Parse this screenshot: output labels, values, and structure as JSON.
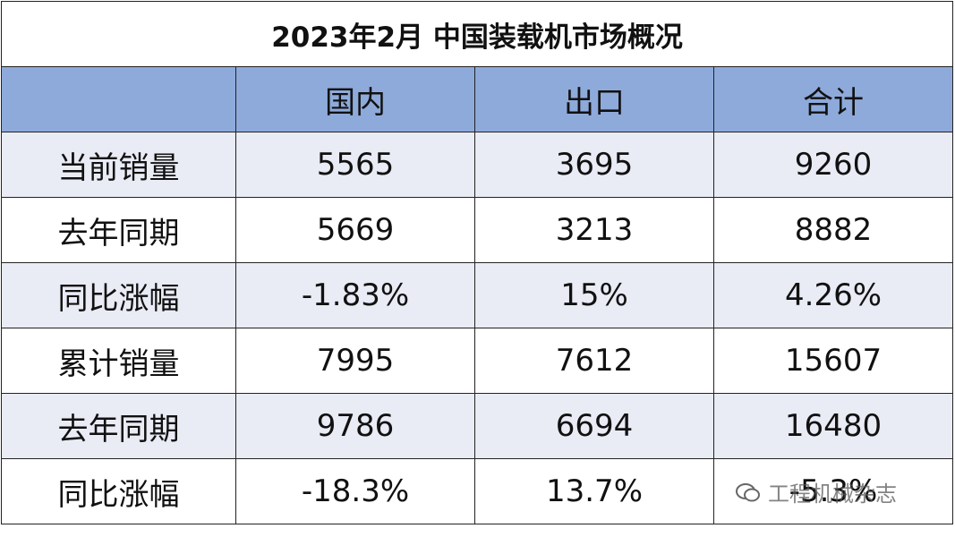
{
  "title": "2023年2月 中国装载机市场概况",
  "table": {
    "columns": [
      "国内",
      "出口",
      "合计"
    ],
    "rows": [
      {
        "label": "当前销量",
        "cells": [
          "5565",
          "3695",
          "9260"
        ]
      },
      {
        "label": "去年同期",
        "cells": [
          "5669",
          "3213",
          "8882"
        ]
      },
      {
        "label": "同比涨幅",
        "cells": [
          "-1.83%",
          "15%",
          "4.26%"
        ]
      },
      {
        "label": "累计销量",
        "cells": [
          "7995",
          "7612",
          "15607"
        ]
      },
      {
        "label": "去年同期",
        "cells": [
          "9786",
          "6694",
          "16480"
        ]
      },
      {
        "label": "同比涨幅",
        "cells": [
          "-18.3%",
          "13.7%",
          "-5.3%"
        ]
      }
    ]
  },
  "watermark": "工程机械杂志"
}
